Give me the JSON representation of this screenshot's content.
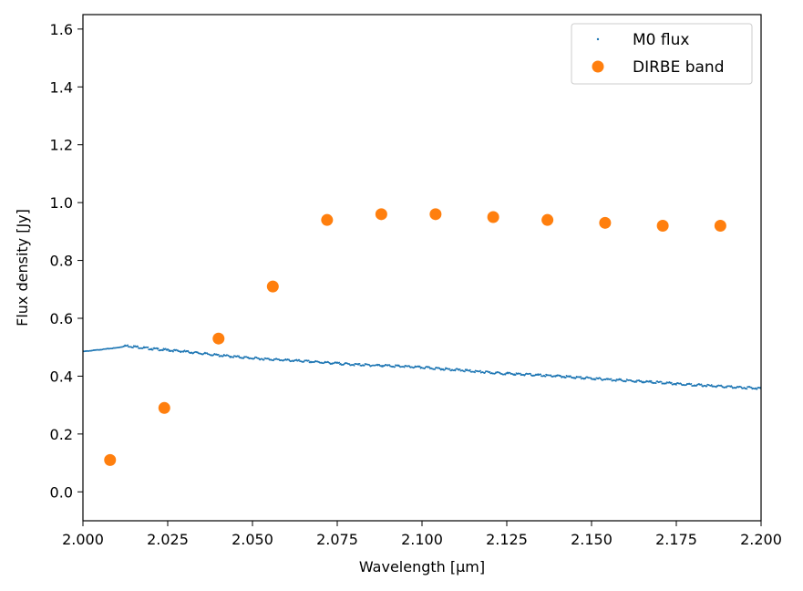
{
  "chart_data": {
    "type": "scatter",
    "xlabel": "Wavelength [µm]",
    "ylabel": "Flux density [Jy]",
    "xlim": [
      2.0,
      2.2
    ],
    "ylim": [
      -0.1,
      1.65
    ],
    "xticks": [
      2.0,
      2.025,
      2.05,
      2.075,
      2.1,
      2.125,
      2.15,
      2.175,
      2.2
    ],
    "xtick_labels": [
      "2.000",
      "2.025",
      "2.050",
      "2.075",
      "2.100",
      "2.125",
      "2.150",
      "2.175",
      "2.200"
    ],
    "yticks": [
      0.0,
      0.2,
      0.4,
      0.6,
      0.8,
      1.0,
      1.2,
      1.4,
      1.6
    ],
    "ytick_labels": [
      "0.0",
      "0.2",
      "0.4",
      "0.6",
      "0.8",
      "1.0",
      "1.2",
      "1.4",
      "1.6"
    ],
    "grid": false,
    "legend_position": "top-right",
    "series": [
      {
        "name": "M0 flux",
        "color": "#1f77b4",
        "marker": "small-dot",
        "x": [
          2.0,
          2.01,
          2.013,
          2.02,
          2.03,
          2.04,
          2.05,
          2.06,
          2.07,
          2.08,
          2.09,
          2.1,
          2.11,
          2.12,
          2.13,
          2.14,
          2.15,
          2.16,
          2.17,
          2.18,
          2.19,
          2.2
        ],
        "y": [
          0.485,
          0.498,
          0.505,
          0.495,
          0.485,
          0.472,
          0.462,
          0.455,
          0.448,
          0.44,
          0.436,
          0.43,
          0.422,
          0.412,
          0.406,
          0.4,
          0.392,
          0.385,
          0.378,
          0.37,
          0.363,
          0.358
        ]
      },
      {
        "name": "DIRBE band",
        "color": "#ff7f0e",
        "marker": "circle",
        "x": [
          2.008,
          2.024,
          2.04,
          2.056,
          2.072,
          2.088,
          2.104,
          2.121,
          2.137,
          2.154,
          2.171,
          2.188
        ],
        "y": [
          0.11,
          0.29,
          0.53,
          0.71,
          0.94,
          0.96,
          0.96,
          0.95,
          0.94,
          0.93,
          0.92,
          0.92
        ]
      }
    ]
  }
}
